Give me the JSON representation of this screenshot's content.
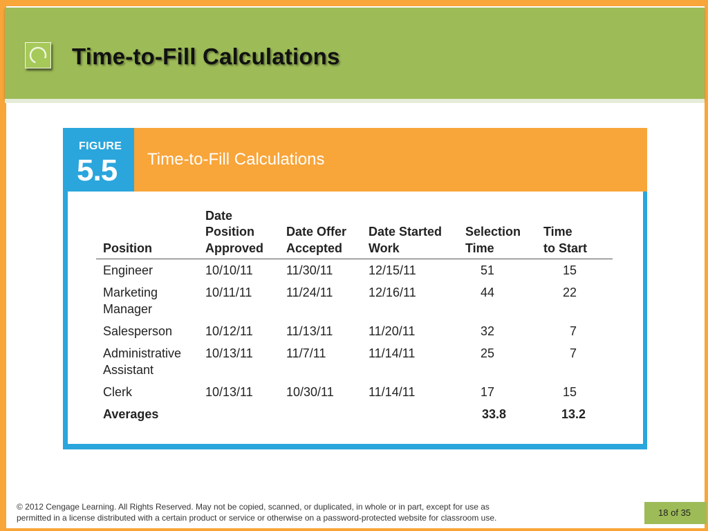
{
  "slide": {
    "title": "Time-to-Fill Calculations"
  },
  "figure": {
    "label": "FIGURE",
    "number": "5.5",
    "title": "Time-to-Fill Calculations"
  },
  "table": {
    "headers": [
      [
        "Position"
      ],
      [
        "Date",
        "Position",
        "Approved"
      ],
      [
        "Date Offer",
        "Accepted"
      ],
      [
        "Date Started",
        "Work"
      ],
      [
        "Selection",
        "Time"
      ],
      [
        "Time",
        "to Start"
      ]
    ],
    "rows": [
      {
        "position": [
          "Engineer"
        ],
        "approved": "10/10/11",
        "accepted": "11/30/11",
        "started": "12/15/11",
        "selection": "51",
        "start": "15"
      },
      {
        "position": [
          "Marketing",
          "Manager"
        ],
        "approved": "10/11/11",
        "accepted": "11/24/11",
        "started": "12/16/11",
        "selection": "44",
        "start": "22"
      },
      {
        "position": [
          "Salesperson"
        ],
        "approved": "10/12/11",
        "accepted": "11/13/11",
        "started": "11/20/11",
        "selection": "32",
        "start": "7"
      },
      {
        "position": [
          "Administrative",
          "Assistant"
        ],
        "approved": "10/13/11",
        "accepted": "11/7/11",
        "started": "11/14/11",
        "selection": "25",
        "start": "7"
      },
      {
        "position": [
          "Clerk"
        ],
        "approved": "10/13/11",
        "accepted": "10/30/11",
        "started": "11/14/11",
        "selection": "17",
        "start": "15"
      }
    ],
    "averages": {
      "label": "Averages",
      "selection": "33.8",
      "start": "13.2"
    }
  },
  "footer": {
    "copyright_line1": "© 2012 Cengage Learning. All Rights Reserved. May not be copied, scanned, or duplicated, in whole or in part, except for use as",
    "copyright_line2": "permitted in a license distributed with a certain product or service or otherwise on a password-protected website for classroom use.",
    "page_current": "18",
    "page_of": "of",
    "page_total": "35"
  },
  "icons": {
    "title_icon": "circle-arc-icon"
  },
  "colors": {
    "orange": "#f8a53a",
    "green": "#9dbb57",
    "blue": "#2aa6dc"
  }
}
